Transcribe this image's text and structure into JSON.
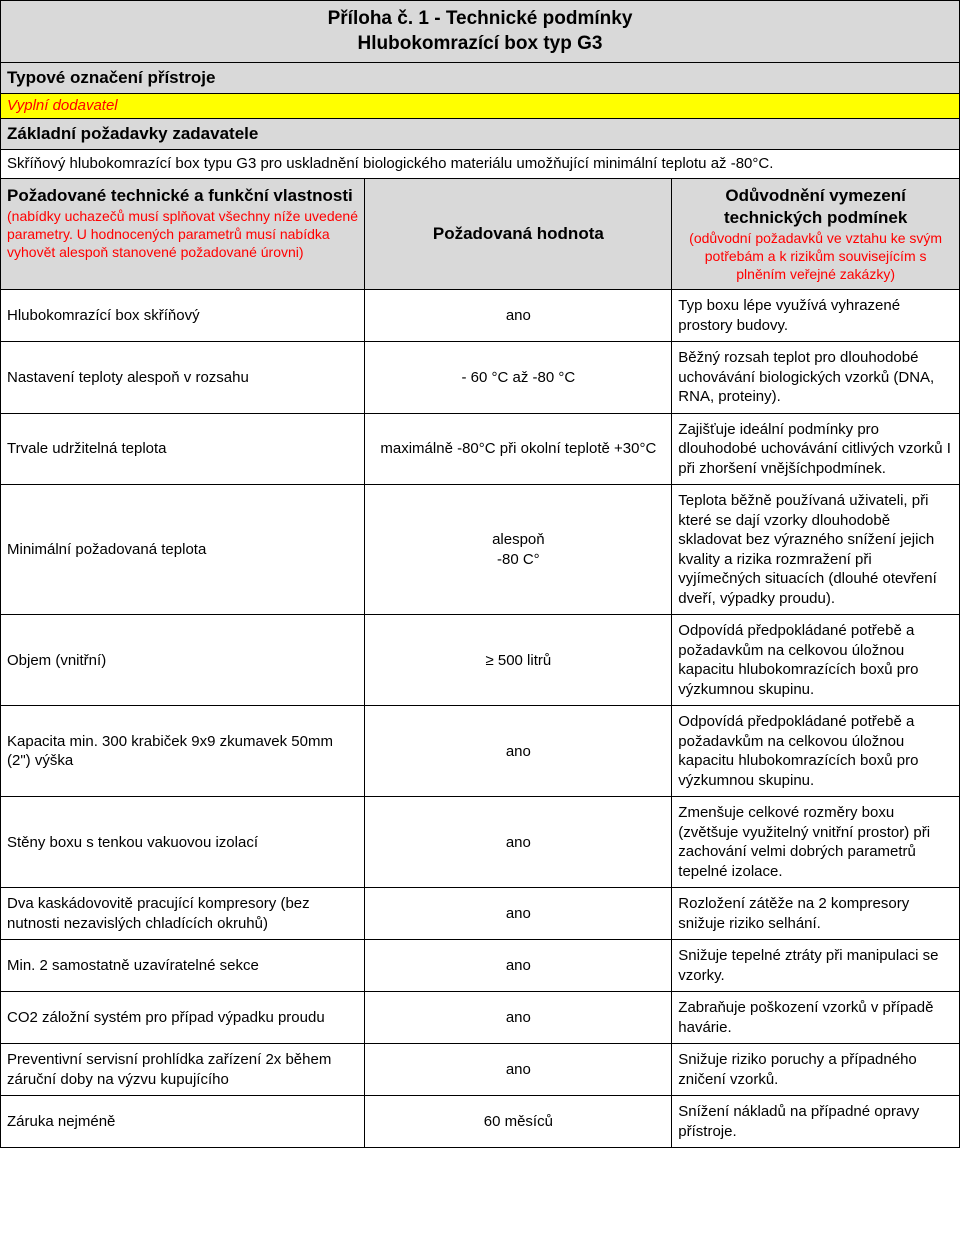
{
  "title": {
    "line1": "Příloha č. 1 - Technické podmínky",
    "line2": "Hlubokomrazící box typ G3"
  },
  "section_type_label": "Typové označení přístroje",
  "supplier_fill": "Vyplní dodavatel",
  "basic_req_label": "Základní požadavky zadavatele",
  "basic_req_desc": "Skříňový hlubokomrazící box typu G3 pro uskladnění biologického materiálu umožňující minimální teplotu až -80°C.",
  "col1_header": {
    "bold": "Požadované technické a funkční vlastnosti",
    "red": "(nabídky uchazečů musí splňovat všechny níže uvedené parametry. U hodnocených parametrů musí nabídka vyhovět alespoň stanovené požadované úrovni)"
  },
  "col2_header": "Požadovaná hodnota",
  "col3_header": {
    "bold": "Odůvodnění vymezení technických podmínek",
    "red": "(odůvodní požadavků ve vztahu ke svým potřebám a k rizikům souvisejícím s plněním veřejné zakázky)"
  },
  "rows": [
    {
      "param": "Hlubokomrazící box skříňový",
      "value": "ano",
      "reason": "Typ boxu lépe využívá vyhrazené prostory budovy."
    },
    {
      "param": "Nastavení teploty alespoň v rozsahu",
      "value": "- 60 °C až -80 °C",
      "reason": "Běžný rozsah teplot pro dlouhodobé uchovávání biologických vzorků (DNA, RNA, proteiny)."
    },
    {
      "param": "Trvale udržitelná teplota",
      "value": "maximálně -80°C při okolní teplotě  +30°C",
      "reason": "Zajišťuje ideální podmínky pro dlouhodobé uchovávání citlivých vzorků I při zhoršení vnějšíchpodmínek."
    },
    {
      "param": "Minimální požadovaná teplota",
      "value": "alespoň\n-80 C°",
      "reason": "Teplota běžně používaná uživateli, při které se dají vzorky dlouhodobě skladovat bez výrazného snížení jejich kvality a rizika rozmražení při vyjímečných situacích (dlouhé otevření dveří, výpadky proudu)."
    },
    {
      "param": "Objem (vnitřní)",
      "value": "≥ 500 litrů",
      "reason": "Odpovídá předpokládané potřebě a požadavkům na celkovou úložnou kapacitu hlubokomrazících boxů pro výzkumnou skupinu."
    },
    {
      "param": "Kapacita min. 300 krabiček 9x9 zkumavek 50mm (2\") výška",
      "value": "ano",
      "reason": "Odpovídá předpokládané potřebě a požadavkům na celkovou úložnou kapacitu hlubokomrazících boxů pro výzkumnou skupinu."
    },
    {
      "param": "Stěny boxu s tenkou vakuovou izolací",
      "value": "ano",
      "reason": "Zmenšuje celkové rozměry boxu (zvětšuje využitelný vnitřní prostor) při zachování velmi dobrých parametrů tepelné izolace."
    },
    {
      "param": "Dva kaskádovovitě pracující kompresory (bez nutnosti nezavislých chladících okruhů)",
      "value": "ano",
      "reason": "Rozložení zátěže na 2 kompresory snižuje riziko selhání."
    },
    {
      "param": "Min. 2 samostatně uzavíratelné sekce",
      "value": "ano",
      "reason": "Snižuje tepelné ztráty při manipulaci se vzorky."
    },
    {
      "param": "CO2 záložní systém pro případ výpadku proudu",
      "value": "ano",
      "reason": "Zabraňuje poškození vzorků v případě havárie."
    },
    {
      "param": "Preventivní servisní prohlídka zařízení 2x během záruční doby na výzvu kupujícího",
      "value": "ano",
      "reason": "Snižuje riziko poruchy a případného zničení vzorků."
    },
    {
      "param": "Záruka nejméně",
      "value": "60 měsíců",
      "reason": "Snížení nákladů na případné opravy přístroje."
    }
  ]
}
